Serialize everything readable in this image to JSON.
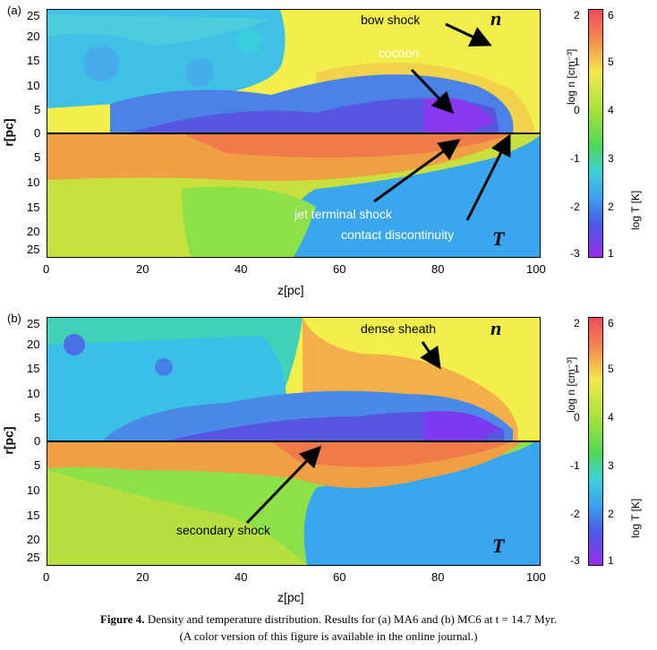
{
  "panels": [
    {
      "label": "(a)",
      "r_ticks": [
        "25",
        "20",
        "15",
        "10",
        "5",
        "0",
        "5",
        "10",
        "15",
        "20",
        "25"
      ],
      "z_ticks": [
        "0",
        "20",
        "40",
        "60",
        "80",
        "100"
      ],
      "ylabel": "r[pc]",
      "xlabel": "z[pc]",
      "annotations": [
        "bow shock",
        "cocoon",
        "jet terminal shock",
        "contact discontinuity"
      ],
      "upper_symbol": "n",
      "lower_symbol": "T"
    },
    {
      "label": "(b)",
      "r_ticks": [
        "25",
        "20",
        "15",
        "10",
        "5",
        "0",
        "5",
        "10",
        "15",
        "20",
        "25"
      ],
      "z_ticks": [
        "0",
        "20",
        "40",
        "60",
        "80",
        "100"
      ],
      "ylabel": "r[pc]",
      "xlabel": "z[pc]",
      "annotations": [
        "dense sheath",
        "secondary shock"
      ],
      "upper_symbol": "n",
      "lower_symbol": "T"
    }
  ],
  "colorbar": {
    "n_ticks": [
      "2",
      "1",
      "0",
      "-1",
      "-2",
      "-3"
    ],
    "T_ticks": [
      "6",
      "5",
      "4",
      "3",
      "2",
      "1"
    ],
    "n_title": "log n [cm⁻³]",
    "T_title": "log T [K]"
  },
  "caption": {
    "line1_bold": "Figure 4.",
    "line1_rest": " Density and temperature distribution. Results for (a) MA6 and (b) MC6 at t = 14.7 Myr.",
    "line2": "(A color version of this figure is available in the online journal.)"
  }
}
